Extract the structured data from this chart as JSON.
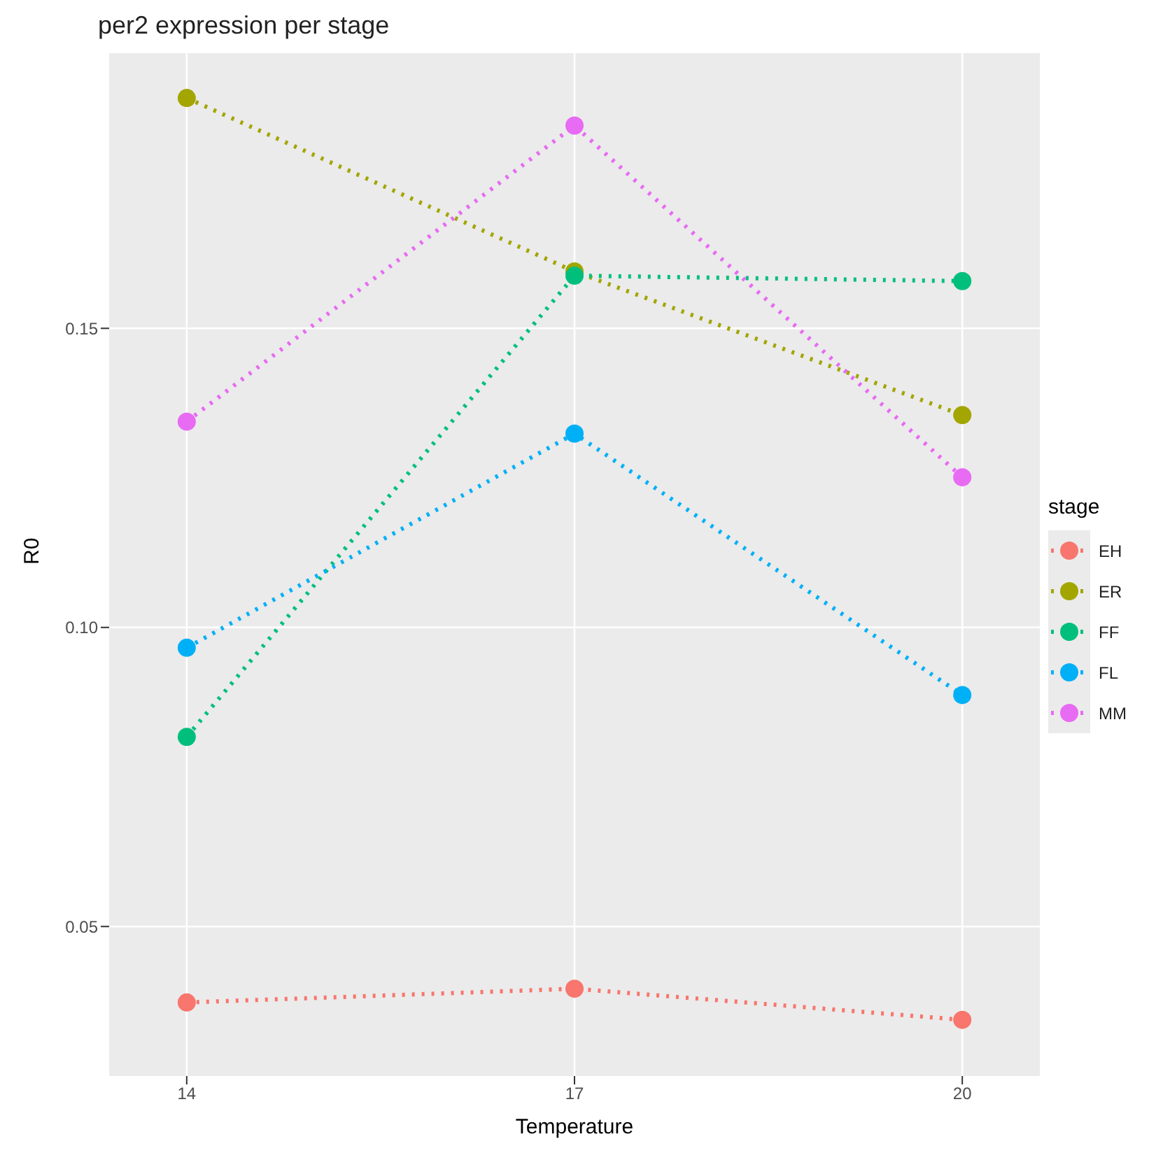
{
  "chart_data": {
    "type": "line",
    "title": "per2 expression per stage",
    "xlabel": "Temperature",
    "ylabel": "R0",
    "legend_title": "stage",
    "x": [
      14,
      17,
      20
    ],
    "series": [
      {
        "name": "EH",
        "color": "#f8766d",
        "values": [
          0.0373,
          0.0396,
          0.0344
        ]
      },
      {
        "name": "ER",
        "color": "#a3a500",
        "values": [
          0.1885,
          0.1595,
          0.1355
        ]
      },
      {
        "name": "FF",
        "color": "#00bf7d",
        "values": [
          0.0817,
          0.1588,
          0.1579
        ]
      },
      {
        "name": "FL",
        "color": "#00b0f6",
        "values": [
          0.0966,
          0.1324,
          0.0887
        ]
      },
      {
        "name": "MM",
        "color": "#e76bf3",
        "values": [
          0.1344,
          0.1839,
          0.1251
        ]
      }
    ],
    "xlim": [
      13.4,
      20.6
    ],
    "xticks": [
      14,
      17,
      20
    ],
    "ylim": [
      0.025,
      0.196
    ],
    "yticks": [
      {
        "value": 0.05,
        "label": "0.05"
      },
      {
        "value": 0.1,
        "label": "0.10"
      },
      {
        "value": 0.15,
        "label": "0.15"
      }
    ],
    "grid": true,
    "legend": "right",
    "marker": "circle",
    "line_style": "dotted"
  }
}
